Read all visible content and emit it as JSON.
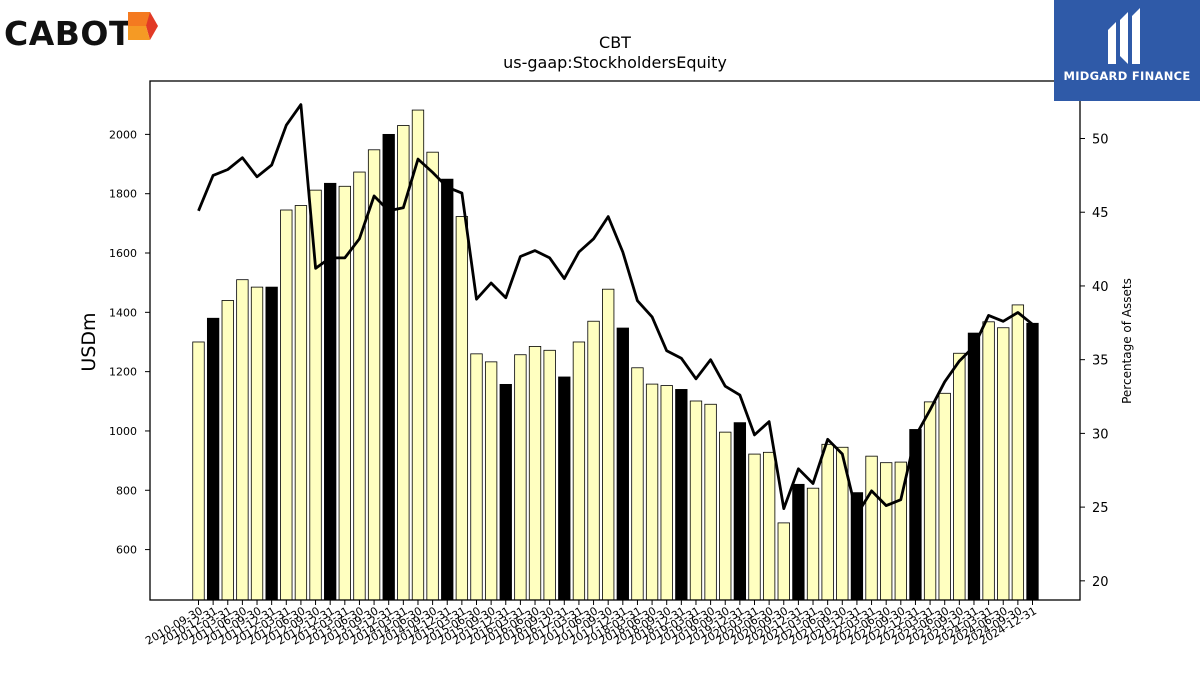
{
  "logos": {
    "left": "CABOT",
    "right": "MIDGARD FINANCE"
  },
  "chart_data": {
    "type": "bar+line",
    "title": "CBT",
    "subtitle": "us-gaap:StockholdersEquity",
    "ylabel": "USDm",
    "y2label": "Percentage of Assets",
    "ylim": [
      430,
      2180
    ],
    "y2lim": [
      18.7,
      53.9
    ],
    "yticks": [
      600,
      800,
      1000,
      1200,
      1400,
      1600,
      1800,
      2000
    ],
    "y2ticks": [
      20,
      25,
      30,
      35,
      40,
      45,
      50
    ],
    "colors": {
      "bar": "#ffffc0",
      "bar_highlight": "#000000",
      "line": "#000000"
    },
    "categories": [
      "2010-09-30",
      "2010-12-31",
      "2011-03-31",
      "2011-06-30",
      "2011-09-30",
      "2011-12-31",
      "2012-03-31",
      "2012-06-30",
      "2012-09-30",
      "2012-12-31",
      "2013-03-31",
      "2013-06-30",
      "2013-09-30",
      "2013-12-31",
      "2014-03-31",
      "2014-06-30",
      "2014-09-30",
      "2014-12-31",
      "2015-03-31",
      "2015-06-30",
      "2015-09-30",
      "2015-12-31",
      "2016-03-31",
      "2016-06-30",
      "2016-09-30",
      "2016-12-31",
      "2017-03-31",
      "2017-06-30",
      "2017-09-30",
      "2017-12-31",
      "2018-03-31",
      "2018-06-30",
      "2018-09-30",
      "2018-12-31",
      "2019-03-31",
      "2019-06-30",
      "2019-09-30",
      "2019-12-31",
      "2020-03-31",
      "2020-06-30",
      "2020-09-30",
      "2020-12-31",
      "2021-03-31",
      "2021-06-30",
      "2021-09-30",
      "2021-12-31",
      "2022-03-31",
      "2022-06-30",
      "2022-09-30",
      "2022-12-31",
      "2023-03-31",
      "2023-06-30",
      "2023-09-30",
      "2023-12-31",
      "2024-03-31",
      "2024-06-30",
      "2024-09-30",
      "2024-12-31"
    ],
    "series": [
      {
        "type": "bar",
        "values": [
          1300,
          1380,
          1440,
          1510,
          1485,
          1485,
          1745,
          1760,
          1812,
          1835,
          1825,
          1873,
          1948,
          2000,
          2030,
          2082,
          1940,
          1849,
          1723,
          1260,
          1233,
          1157,
          1257,
          1285,
          1272,
          1182,
          1300,
          1370,
          1478,
          1347,
          1213,
          1158,
          1153,
          1140,
          1101,
          1090,
          996,
          1028,
          922,
          928,
          690,
          820,
          807,
          955,
          945,
          792,
          915,
          893,
          895,
          1005,
          1098,
          1127,
          1262,
          1330,
          1368,
          1348,
          1425,
          1363
        ],
        "highlight": [
          false,
          true,
          false,
          false,
          false,
          true,
          false,
          false,
          false,
          true,
          false,
          false,
          false,
          true,
          false,
          false,
          false,
          true,
          false,
          false,
          false,
          true,
          false,
          false,
          false,
          true,
          false,
          false,
          false,
          true,
          false,
          false,
          false,
          true,
          false,
          false,
          false,
          true,
          false,
          false,
          false,
          true,
          false,
          false,
          false,
          true,
          false,
          false,
          false,
          true,
          false,
          false,
          false,
          true,
          false,
          false,
          false,
          true
        ]
      },
      {
        "type": "line",
        "axis": "right",
        "values": [
          45.1,
          47.5,
          47.9,
          48.7,
          47.4,
          48.2,
          50.9,
          52.3,
          41.2,
          41.9,
          41.9,
          43.2,
          46.1,
          45.1,
          45.3,
          48.6,
          47.7,
          46.7,
          46.3,
          39.1,
          40.2,
          39.2,
          42.0,
          42.4,
          41.9,
          40.5,
          42.3,
          43.2,
          44.7,
          42.3,
          39.0,
          37.9,
          35.6,
          35.1,
          33.7,
          35.0,
          33.2,
          32.6,
          29.9,
          30.8,
          24.9,
          27.6,
          26.6,
          29.6,
          28.6,
          24.5,
          26.1,
          25.1,
          25.5,
          29.8,
          31.6,
          33.5,
          34.9,
          35.9,
          38.0,
          37.6,
          38.2,
          37.4
        ]
      }
    ]
  }
}
